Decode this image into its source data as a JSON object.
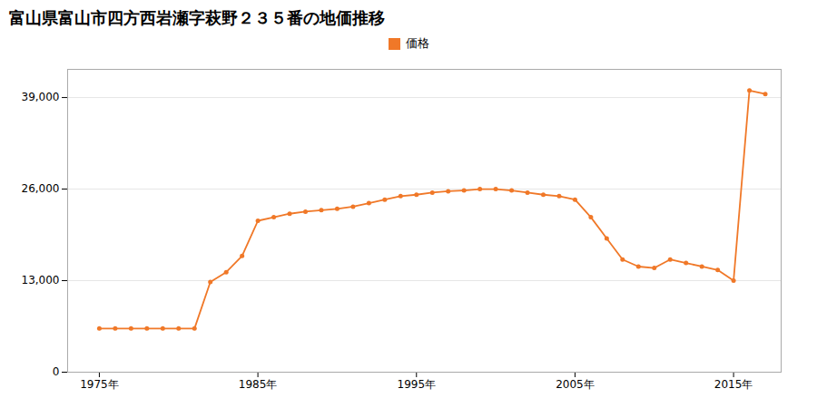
{
  "chart_data": {
    "type": "line",
    "title": "富山県富山市四方西岩瀬字萩野２３５番の地価推移",
    "x": [
      1975,
      1976,
      1977,
      1978,
      1979,
      1980,
      1981,
      1982,
      1983,
      1984,
      1985,
      1986,
      1987,
      1988,
      1989,
      1990,
      1991,
      1992,
      1993,
      1994,
      1995,
      1996,
      1997,
      1998,
      1999,
      2000,
      2001,
      2002,
      2003,
      2004,
      2005,
      2006,
      2007,
      2008,
      2009,
      2010,
      2011,
      2012,
      2013,
      2014,
      2015,
      2016,
      2017
    ],
    "series": [
      {
        "name": "価格",
        "color": "#f07828",
        "values": [
          6200,
          6200,
          6200,
          6200,
          6200,
          6200,
          6200,
          12800,
          14200,
          16500,
          21500,
          22000,
          22500,
          22800,
          23000,
          23200,
          23500,
          24000,
          24500,
          25000,
          25200,
          25500,
          25700,
          25800,
          26000,
          26000,
          25800,
          25500,
          25200,
          25000,
          24500,
          22000,
          19000,
          16000,
          15000,
          14800,
          16000,
          15500,
          15000,
          14500,
          13000,
          40000,
          39500
        ]
      }
    ],
    "xlim": [
      1973,
      2018
    ],
    "xticks": [
      {
        "value": 1975,
        "label": "1975年"
      },
      {
        "value": 1985,
        "label": "1985年"
      },
      {
        "value": 1995,
        "label": "1995年"
      },
      {
        "value": 2005,
        "label": "2005年"
      },
      {
        "value": 2015,
        "label": "2015年"
      }
    ],
    "ylim": [
      0,
      43000
    ],
    "yticks": [
      0,
      {
        "value": 13000,
        "label": "13,000"
      },
      {
        "value": 26000,
        "label": "26,000"
      },
      {
        "value": 39000,
        "label": "39,000"
      }
    ],
    "grid": true,
    "legend": "top",
    "marker": "circle",
    "line_style": "solid"
  }
}
